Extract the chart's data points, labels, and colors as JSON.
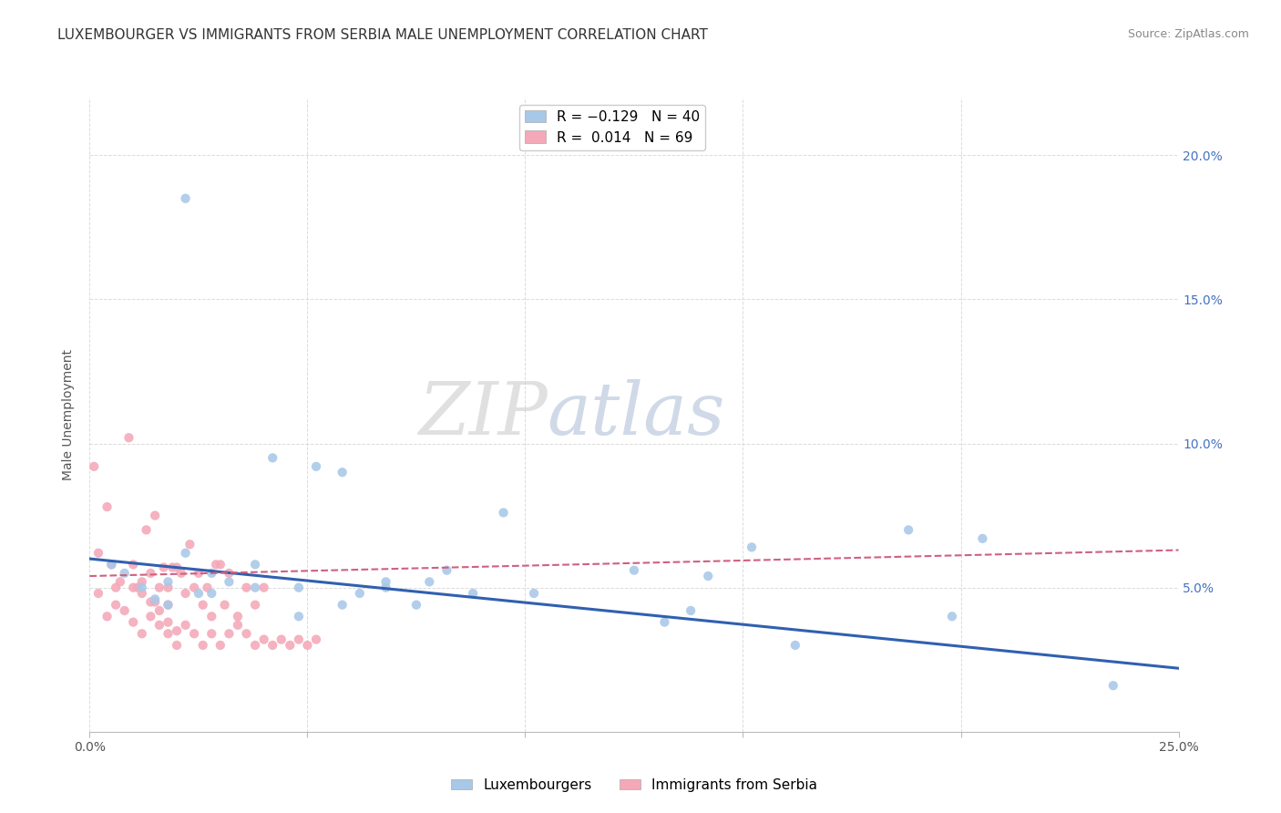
{
  "title": "LUXEMBOURGER VS IMMIGRANTS FROM SERBIA MALE UNEMPLOYMENT CORRELATION CHART",
  "source": "Source: ZipAtlas.com",
  "ylabel": "Male Unemployment",
  "xlim": [
    0.0,
    0.25
  ],
  "ylim": [
    0.0,
    0.22
  ],
  "x_ticks": [
    0.0,
    0.05,
    0.1,
    0.15,
    0.2,
    0.25
  ],
  "x_tick_labels": [
    "0.0%",
    "",
    "",
    "",
    "",
    "25.0%"
  ],
  "y_ticks": [
    0.0,
    0.05,
    0.1,
    0.15,
    0.2
  ],
  "y_tick_labels_left": [
    "",
    "",
    "",
    "",
    ""
  ],
  "y_tick_labels_right": [
    "",
    "5.0%",
    "10.0%",
    "15.0%",
    "20.0%"
  ],
  "background_color": "#ffffff",
  "grid_color": "#d8d8d8",
  "lux_color": "#a8c8e8",
  "serb_color": "#f4a8b8",
  "lux_line_color": "#3060b0",
  "serb_line_color": "#d06080",
  "lux_trend_x": [
    0.0,
    0.25
  ],
  "lux_trend_y": [
    0.06,
    0.022
  ],
  "serb_trend_x": [
    0.0,
    0.25
  ],
  "serb_trend_y": [
    0.054,
    0.063
  ],
  "lux_scatter_x": [
    0.022,
    0.005,
    0.008,
    0.012,
    0.018,
    0.025,
    0.028,
    0.032,
    0.038,
    0.042,
    0.048,
    0.052,
    0.058,
    0.062,
    0.068,
    0.075,
    0.082,
    0.088,
    0.095,
    0.102,
    0.125,
    0.132,
    0.138,
    0.142,
    0.152,
    0.162,
    0.198,
    0.205,
    0.235,
    0.048,
    0.058,
    0.068,
    0.015,
    0.022,
    0.018,
    0.028,
    0.038,
    0.078,
    0.188
  ],
  "lux_scatter_y": [
    0.185,
    0.058,
    0.055,
    0.05,
    0.052,
    0.048,
    0.055,
    0.052,
    0.058,
    0.095,
    0.05,
    0.092,
    0.09,
    0.048,
    0.05,
    0.044,
    0.056,
    0.048,
    0.076,
    0.048,
    0.056,
    0.038,
    0.042,
    0.054,
    0.064,
    0.03,
    0.04,
    0.067,
    0.016,
    0.04,
    0.044,
    0.052,
    0.046,
    0.062,
    0.044,
    0.048,
    0.05,
    0.052,
    0.07
  ],
  "serb_scatter_x": [
    0.001,
    0.002,
    0.004,
    0.005,
    0.006,
    0.007,
    0.009,
    0.01,
    0.011,
    0.012,
    0.013,
    0.014,
    0.015,
    0.015,
    0.016,
    0.017,
    0.018,
    0.018,
    0.019,
    0.02,
    0.021,
    0.022,
    0.023,
    0.024,
    0.025,
    0.026,
    0.027,
    0.028,
    0.029,
    0.03,
    0.031,
    0.032,
    0.034,
    0.036,
    0.038,
    0.04,
    0.002,
    0.004,
    0.006,
    0.008,
    0.01,
    0.012,
    0.014,
    0.016,
    0.018,
    0.02,
    0.022,
    0.024,
    0.026,
    0.028,
    0.03,
    0.032,
    0.034,
    0.036,
    0.038,
    0.04,
    0.042,
    0.044,
    0.046,
    0.048,
    0.05,
    0.052,
    0.01,
    0.012,
    0.014,
    0.016,
    0.018,
    0.02
  ],
  "serb_scatter_y": [
    0.092,
    0.062,
    0.078,
    0.058,
    0.05,
    0.052,
    0.102,
    0.058,
    0.05,
    0.052,
    0.07,
    0.055,
    0.075,
    0.045,
    0.05,
    0.057,
    0.05,
    0.044,
    0.057,
    0.057,
    0.055,
    0.048,
    0.065,
    0.05,
    0.055,
    0.044,
    0.05,
    0.04,
    0.058,
    0.058,
    0.044,
    0.055,
    0.04,
    0.05,
    0.044,
    0.05,
    0.048,
    0.04,
    0.044,
    0.042,
    0.038,
    0.034,
    0.04,
    0.037,
    0.034,
    0.03,
    0.037,
    0.034,
    0.03,
    0.034,
    0.03,
    0.034,
    0.037,
    0.034,
    0.03,
    0.032,
    0.03,
    0.032,
    0.03,
    0.032,
    0.03,
    0.032,
    0.05,
    0.048,
    0.045,
    0.042,
    0.038,
    0.035
  ]
}
